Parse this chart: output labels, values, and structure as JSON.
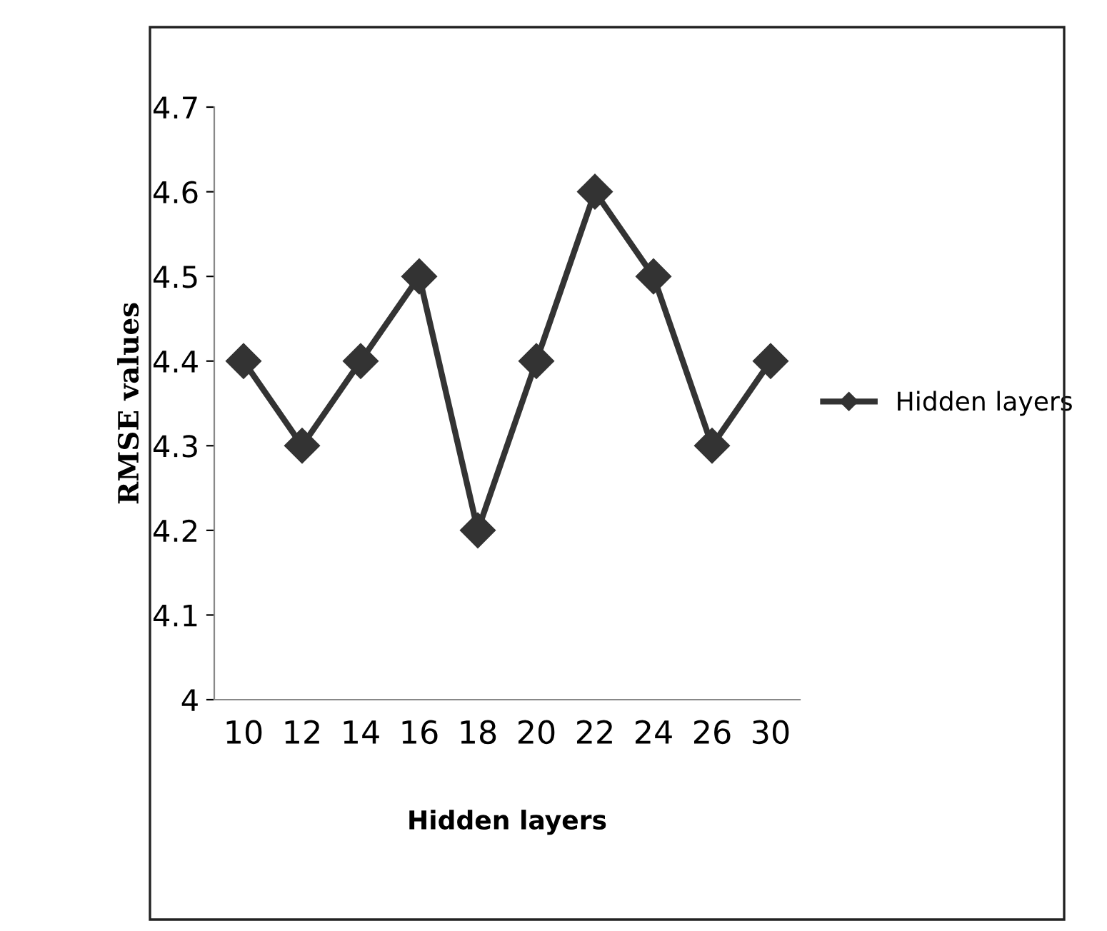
{
  "chart_data": {
    "type": "line",
    "xlabel": "Hidden layers",
    "ylabel": "RMSE values",
    "categories": [
      "10",
      "12",
      "14",
      "16",
      "18",
      "20",
      "22",
      "24",
      "26",
      "30"
    ],
    "series": [
      {
        "name": "Hidden layers",
        "color": "#333333",
        "values": [
          4.4,
          4.3,
          4.4,
          4.5,
          4.2,
          4.4,
          4.6,
          4.5,
          4.3,
          4.4
        ]
      }
    ],
    "ylim": [
      4,
      4.7
    ],
    "yticks": [
      4,
      4.1,
      4.2,
      4.3,
      4.4,
      4.5,
      4.6,
      4.7
    ],
    "marker": "diamond",
    "line_style": "solid",
    "grid": false,
    "legend": "right"
  }
}
